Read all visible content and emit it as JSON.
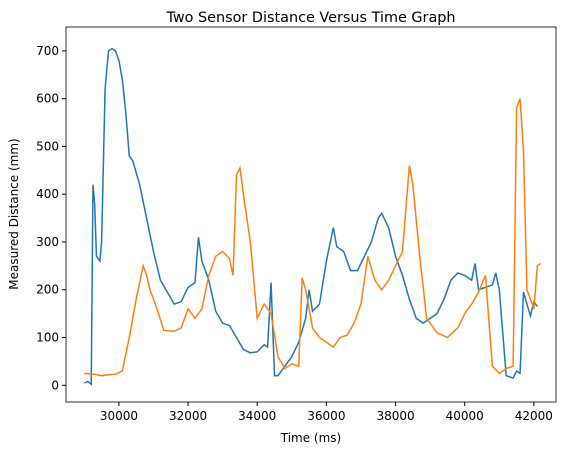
{
  "chart_data": {
    "type": "line",
    "title": "Two Sensor Distance Versus Time Graph",
    "x_label": "Time (ms)",
    "y_label": "Measured Distance (mm)",
    "xlim": [
      28470,
      42640
    ],
    "ylim": [
      -35,
      750
    ],
    "xticks": [
      30000,
      32000,
      34000,
      36000,
      38000,
      40000,
      42000
    ],
    "yticks": [
      0,
      100,
      200,
      300,
      400,
      500,
      600,
      700
    ],
    "grid": false,
    "series": [
      {
        "color": "#1f77b4",
        "x": [
          29000,
          29100,
          29200,
          29250,
          29300,
          29350,
          29450,
          29500,
          29600,
          29700,
          29800,
          29900,
          30000,
          30100,
          30200,
          30300,
          30400,
          30600,
          30800,
          31000,
          31200,
          31400,
          31600,
          31800,
          32000,
          32200,
          32300,
          32400,
          32600,
          32800,
          33000,
          33200,
          33400,
          33600,
          33800,
          34000,
          34200,
          34300,
          34400,
          34500,
          34600,
          34800,
          35000,
          35200,
          35400,
          35500,
          35600,
          35800,
          36000,
          36200,
          36300,
          36500,
          36700,
          36900,
          37100,
          37300,
          37500,
          37600,
          37800,
          38000,
          38200,
          38400,
          38600,
          38800,
          39000,
          39200,
          39400,
          39600,
          39800,
          40000,
          40200,
          40300,
          40400,
          40600,
          40800,
          40900,
          41000,
          41200,
          41400,
          41500,
          41600,
          41700,
          41800,
          41900,
          42000,
          42100
        ],
        "values": [
          5,
          8,
          2,
          420,
          380,
          270,
          260,
          300,
          620,
          700,
          705,
          700,
          680,
          640,
          570,
          480,
          470,
          420,
          350,
          280,
          220,
          195,
          170,
          175,
          205,
          215,
          310,
          260,
          220,
          155,
          130,
          125,
          100,
          75,
          68,
          70,
          85,
          80,
          215,
          20,
          20,
          40,
          60,
          90,
          140,
          200,
          155,
          170,
          260,
          330,
          290,
          280,
          240,
          240,
          270,
          300,
          350,
          360,
          330,
          270,
          230,
          180,
          140,
          130,
          140,
          150,
          180,
          220,
          235,
          230,
          220,
          255,
          200,
          205,
          210,
          235,
          200,
          20,
          15,
          30,
          25,
          195,
          170,
          145,
          175,
          165
        ]
      },
      {
        "color": "#ff7f0e",
        "x": [
          29000,
          29300,
          29500,
          29700,
          29900,
          30100,
          30300,
          30500,
          30700,
          30800,
          30900,
          31100,
          31300,
          31600,
          31800,
          32000,
          32200,
          32400,
          32600,
          32800,
          33000,
          33200,
          33300,
          33400,
          33500,
          33600,
          33800,
          34000,
          34200,
          34400,
          34600,
          34800,
          35000,
          35200,
          35300,
          35400,
          35600,
          35800,
          36000,
          36200,
          36400,
          36600,
          36800,
          37000,
          37200,
          37400,
          37600,
          37800,
          38000,
          38200,
          38400,
          38500,
          38700,
          38900,
          39200,
          39500,
          39800,
          40000,
          40200,
          40400,
          40600,
          40800,
          41000,
          41200,
          41400,
          41500,
          41600,
          41700,
          41800,
          42000,
          42100,
          42200
        ],
        "values": [
          25,
          23,
          20,
          22,
          23,
          30,
          100,
          180,
          250,
          230,
          200,
          160,
          115,
          113,
          120,
          160,
          140,
          160,
          230,
          270,
          280,
          265,
          230,
          440,
          455,
          400,
          300,
          140,
          170,
          150,
          60,
          35,
          45,
          40,
          225,
          200,
          120,
          100,
          90,
          80,
          100,
          105,
          130,
          170,
          270,
          220,
          200,
          220,
          250,
          280,
          460,
          420,
          270,
          140,
          110,
          100,
          120,
          150,
          170,
          195,
          230,
          40,
          25,
          35,
          40,
          580,
          600,
          490,
          200,
          160,
          250,
          255
        ]
      }
    ]
  }
}
